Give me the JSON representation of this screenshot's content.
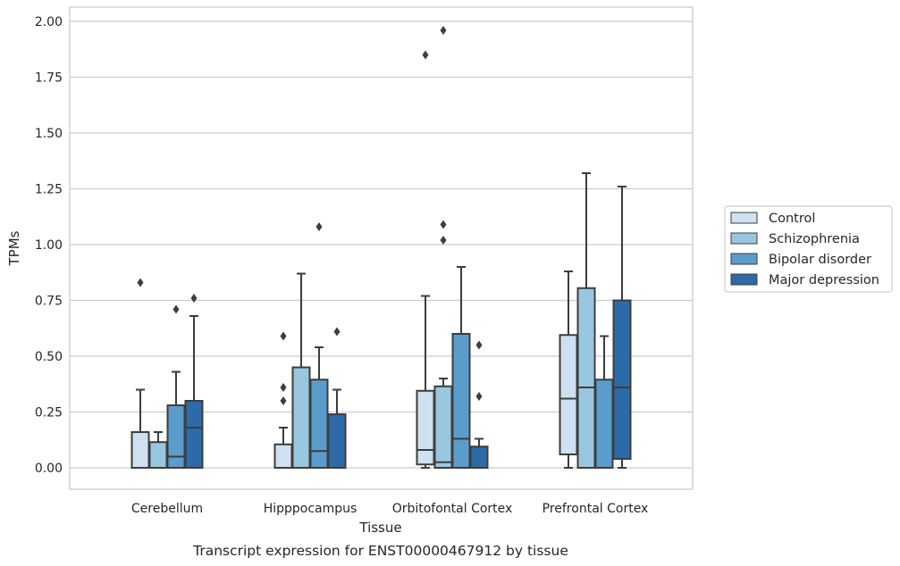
{
  "chart_data": {
    "type": "box",
    "caption": "Transcript expression for ENST00000467912 by tissue",
    "xlabel": "Tissue",
    "ylabel": "TPMs",
    "ylim": [
      -0.095,
      2.06
    ],
    "yticks": [
      0.0,
      0.25,
      0.5,
      0.75,
      1.0,
      1.25,
      1.5,
      1.75,
      2.0
    ],
    "ytick_labels": [
      "0.00",
      "0.25",
      "0.50",
      "0.75",
      "1.00",
      "1.25",
      "1.50",
      "1.75",
      "2.00"
    ],
    "grid": true,
    "legend_position": "right",
    "categories": [
      "Cerebellum",
      "Hipppocampus",
      "Orbitofontal Cortex",
      "Prefrontal Cortex"
    ],
    "series": [
      {
        "name": "Control",
        "color": "#cfe0f0",
        "boxes": [
          {
            "min": 0.0,
            "q1": 0.0,
            "median": 0.0,
            "q3": 0.16,
            "max": 0.35,
            "outliers": [
              0.83
            ]
          },
          {
            "min": 0.0,
            "q1": 0.0,
            "median": 0.0,
            "q3": 0.105,
            "max": 0.18,
            "outliers": [
              0.59,
              0.36,
              0.3
            ]
          },
          {
            "min": 0.0,
            "q1": 0.015,
            "median": 0.08,
            "q3": 0.345,
            "max": 0.77,
            "outliers": [
              1.85
            ]
          },
          {
            "min": 0.0,
            "q1": 0.06,
            "median": 0.31,
            "q3": 0.595,
            "max": 0.88,
            "outliers": []
          }
        ]
      },
      {
        "name": "Schizophrenia",
        "color": "#9ac7e0",
        "boxes": [
          {
            "min": 0.0,
            "q1": 0.0,
            "median": 0.0,
            "q3": 0.115,
            "max": 0.16,
            "outliers": []
          },
          {
            "min": 0.0,
            "q1": 0.0,
            "median": 0.0,
            "q3": 0.45,
            "max": 0.87,
            "outliers": []
          },
          {
            "min": 0.0,
            "q1": 0.0,
            "median": 0.025,
            "q3": 0.365,
            "max": 0.4,
            "outliers": [
              1.96,
              1.09,
              1.02
            ]
          },
          {
            "min": 0.0,
            "q1": 0.0,
            "median": 0.36,
            "q3": 0.805,
            "max": 1.32,
            "outliers": []
          }
        ]
      },
      {
        "name": "Bipolar disorder",
        "color": "#5a9dcc",
        "boxes": [
          {
            "min": 0.0,
            "q1": 0.0,
            "median": 0.05,
            "q3": 0.28,
            "max": 0.43,
            "outliers": [
              0.71
            ]
          },
          {
            "min": 0.0,
            "q1": 0.0,
            "median": 0.075,
            "q3": 0.395,
            "max": 0.54,
            "outliers": [
              1.08
            ]
          },
          {
            "min": 0.0,
            "q1": 0.0,
            "median": 0.13,
            "q3": 0.6,
            "max": 0.9,
            "outliers": []
          },
          {
            "min": 0.0,
            "q1": 0.0,
            "median": 0.0,
            "q3": 0.395,
            "max": 0.59,
            "outliers": []
          }
        ]
      },
      {
        "name": "Major depression",
        "color": "#2c6ba7",
        "boxes": [
          {
            "min": 0.0,
            "q1": 0.0,
            "median": 0.18,
            "q3": 0.3,
            "max": 0.68,
            "outliers": [
              0.76
            ]
          },
          {
            "min": 0.0,
            "q1": 0.0,
            "median": 0.0,
            "q3": 0.24,
            "max": 0.35,
            "outliers": [
              0.61
            ]
          },
          {
            "min": 0.0,
            "q1": 0.0,
            "median": 0.0,
            "q3": 0.095,
            "max": 0.13,
            "outliers": [
              0.55,
              0.32
            ]
          },
          {
            "min": 0.0,
            "q1": 0.04,
            "median": 0.36,
            "q3": 0.75,
            "max": 1.26,
            "outliers": []
          }
        ]
      }
    ]
  }
}
